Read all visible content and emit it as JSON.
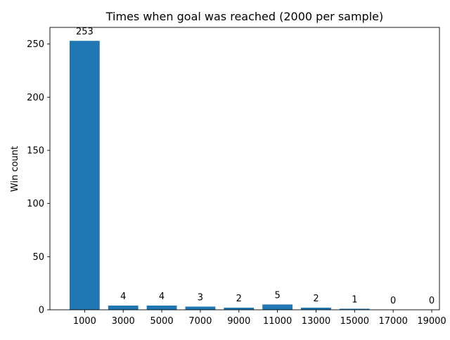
{
  "chart_data": {
    "type": "bar",
    "title": "Times when goal was reached (2000 per sample)",
    "xlabel": "",
    "ylabel": "Win count",
    "categories": [
      "1000",
      "3000",
      "5000",
      "7000",
      "9000",
      "11000",
      "13000",
      "15000",
      "17000",
      "19000"
    ],
    "values": [
      253,
      4,
      4,
      3,
      2,
      5,
      2,
      1,
      0,
      0
    ],
    "data_labels": [
      "253",
      "4",
      "4",
      "3",
      "2",
      "5",
      "2",
      "1",
      "0",
      "0"
    ],
    "yticks": [
      0,
      50,
      100,
      150,
      200,
      250
    ],
    "ytick_labels": [
      "0",
      "50",
      "100",
      "150",
      "200",
      "250"
    ],
    "ylim": [
      0,
      265.65
    ],
    "grid": false,
    "legend": "none",
    "bar_color": "#1f77b4"
  }
}
